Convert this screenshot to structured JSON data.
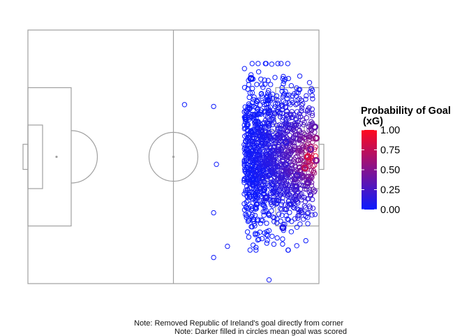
{
  "chart_data": {
    "type": "scatter",
    "title": "",
    "xlabel": "",
    "ylabel": "",
    "grid": false,
    "pitch": {
      "length_m": 105,
      "width_m": 68
    },
    "legend": {
      "title_line1": "Probability of Goal",
      "title_line2": "(xG)",
      "ticks": [
        "1.00",
        "0.75",
        "0.50",
        "0.25",
        "0.00"
      ],
      "tick_values": [
        1.0,
        0.75,
        0.5,
        0.25,
        0.0
      ],
      "low_color": "#0a1bff",
      "high_color": "#ff0a1e",
      "placement": "right"
    },
    "cloud": {
      "count": 1400,
      "x_min": 67,
      "x_max": 104,
      "y_min": 9,
      "y_max": 59,
      "seed": 7
    },
    "points": [
      {
        "x": 101,
        "y": 34,
        "xg": 0.85,
        "goal": true
      },
      {
        "x": 100,
        "y": 37,
        "xg": 0.75,
        "goal": true
      },
      {
        "x": 102,
        "y": 32,
        "xg": 0.45,
        "goal": true
      },
      {
        "x": 104,
        "y": 29,
        "xg": 0.55,
        "goal": true
      },
      {
        "x": 104,
        "y": 35,
        "xg": 0.5,
        "goal": true
      },
      {
        "x": 103.5,
        "y": 26,
        "xg": 0.35,
        "goal": true
      },
      {
        "x": 101,
        "y": 41,
        "xg": 0.35,
        "goal": true
      },
      {
        "x": 97,
        "y": 39,
        "xg": 0.25,
        "goal": true
      },
      {
        "x": 93,
        "y": 36,
        "xg": 0.2,
        "goal": true
      },
      {
        "x": 93,
        "y": 30,
        "xg": 0.15,
        "goal": true
      },
      {
        "x": 86,
        "y": 45,
        "xg": 0.1,
        "goal": true
      },
      {
        "x": 84,
        "y": 27,
        "xg": 0.08,
        "goal": true
      },
      {
        "x": 92,
        "y": 53,
        "xg": 0.1,
        "goal": true
      },
      {
        "x": 80.5,
        "y": 13,
        "xg": 0.02,
        "goal": true
      },
      {
        "x": 80.5,
        "y": 12,
        "xg": 0.02,
        "goal": false
      },
      {
        "x": 56.5,
        "y": 20,
        "xg": 0.01,
        "goal": false
      },
      {
        "x": 67,
        "y": 20.5,
        "xg": 0.02,
        "goal": false
      },
      {
        "x": 67,
        "y": 49,
        "xg": 0.02,
        "goal": false
      },
      {
        "x": 68,
        "y": 36,
        "xg": 0.02,
        "goal": false
      },
      {
        "x": 67,
        "y": 61,
        "xg": 0.02,
        "goal": false
      },
      {
        "x": 72,
        "y": 58,
        "xg": 0.03,
        "goal": false
      },
      {
        "x": 87,
        "y": 67,
        "xg": 0.03,
        "goal": false
      },
      {
        "x": 94,
        "y": 13,
        "xg": 0.03,
        "goal": false
      }
    ]
  },
  "notes": {
    "line1": "Note: Removed Republic of Ireland's goal directly from corner",
    "line2": "Note: Darker filled in circles mean goal was scored"
  }
}
